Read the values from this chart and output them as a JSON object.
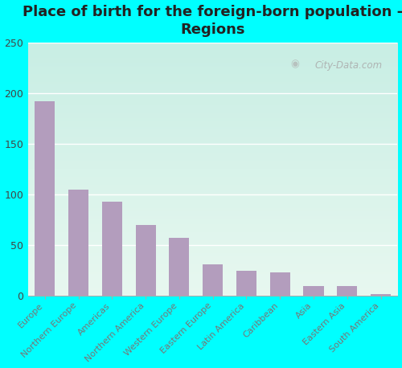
{
  "title": "Place of birth for the foreign-born population -\nRegions",
  "categories": [
    "Europe",
    "Northern Europe",
    "Americas",
    "Northern America",
    "Western Europe",
    "Eastern Europe",
    "Latin America",
    "Caribbean",
    "Asia",
    "Eastern Asia",
    "South America"
  ],
  "values": [
    192,
    105,
    93,
    70,
    57,
    31,
    25,
    23,
    10,
    10,
    2
  ],
  "bar_color": "#b39dbd",
  "bg_outer": "#00ffff",
  "bg_chart_topleft": "#c8eee4",
  "bg_chart_bottomright": "#e8f8f0",
  "ylim": [
    0,
    250
  ],
  "yticks": [
    0,
    50,
    100,
    150,
    200,
    250
  ],
  "title_fontsize": 13,
  "tick_label_fontsize": 8,
  "ytick_fontsize": 9,
  "watermark": "City-Data.com",
  "grid_color": "#ccddcc",
  "bottom_spine_color": "#aaaaaa"
}
